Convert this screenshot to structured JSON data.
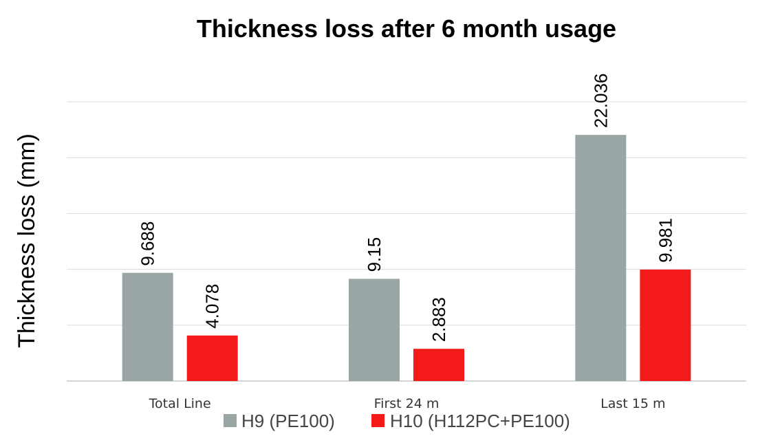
{
  "chart_data": {
    "type": "bar",
    "title": "Thickness loss after 6 month usage",
    "xlabel": "",
    "ylabel": "Thickness loss (mm)",
    "categories": [
      "Total Line",
      "First 24 m",
      "Last 15 m"
    ],
    "series": [
      {
        "name": "H9 (PE100)",
        "color": "#9aa6a5",
        "values": [
          9.688,
          9.15,
          22.036
        ],
        "labels": [
          "9.688",
          "9.15",
          "22.036"
        ]
      },
      {
        "name": "H10 (H112PC+PE100)",
        "color": "#f51a1a",
        "values": [
          4.078,
          2.883,
          9.981
        ],
        "labels": [
          "4.078",
          "2.883",
          "9.981"
        ]
      }
    ],
    "ylim": [
      0,
      25
    ],
    "grid": true,
    "tick_labels_visible": false,
    "legend": "bottom"
  }
}
